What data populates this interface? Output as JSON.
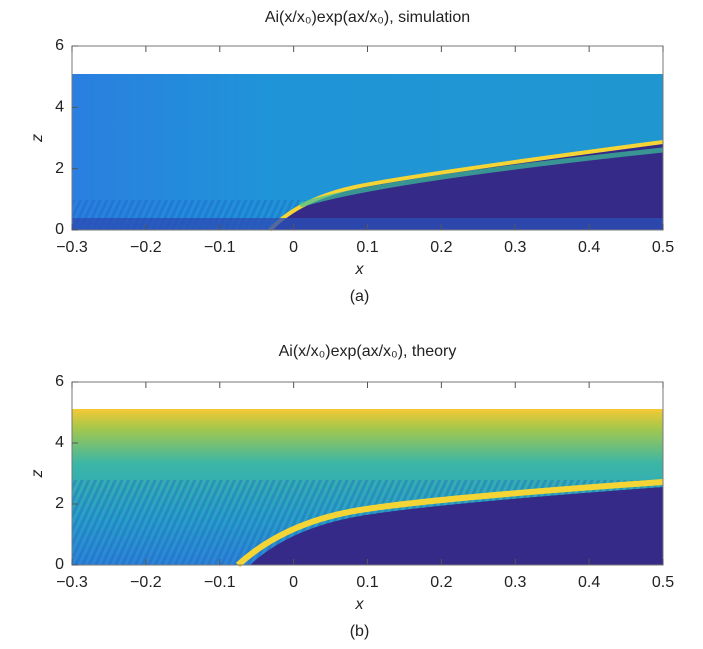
{
  "chart_data": [
    {
      "type": "heatmap",
      "title": "Ai(x/x₀)exp(ax/x₀), simulation",
      "xlabel": "x",
      "ylabel": "z",
      "caption": "(a)",
      "xlim": [
        -0.3,
        0.5
      ],
      "ylim": [
        0,
        6
      ],
      "xticks": [
        {
          "value": -0.3,
          "label": "−0.3"
        },
        {
          "value": -0.2,
          "label": "−0.2"
        },
        {
          "value": -0.1,
          "label": "−0.1"
        },
        0,
        0.1,
        0.2,
        0.3,
        0.4,
        0.5
      ],
      "yticks": [
        0,
        2,
        4,
        6
      ]
    },
    {
      "type": "heatmap",
      "title": "Ai(x/x₀)exp(ax/x₀), theory",
      "xlabel": "x",
      "ylabel": "z",
      "caption": "(b)",
      "xlim": [
        -0.3,
        0.5
      ],
      "ylim": [
        0,
        6
      ],
      "xticks": [
        {
          "value": -0.3,
          "label": "−0.3"
        },
        {
          "value": -0.2,
          "label": "−0.2"
        },
        {
          "value": -0.1,
          "label": "−0.1"
        },
        0,
        0.1,
        0.2,
        0.3,
        0.4,
        0.5
      ],
      "yticks": [
        0,
        2,
        4,
        6
      ]
    }
  ]
}
